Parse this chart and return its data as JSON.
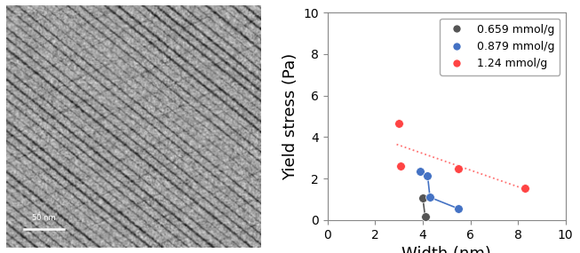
{
  "title": "",
  "xlabel": "Width (nm)",
  "ylabel": "Yield stress (Pa)",
  "xlim": [
    0,
    10
  ],
  "ylim": [
    0,
    10
  ],
  "xticks": [
    0,
    2,
    4,
    6,
    8,
    10
  ],
  "yticks": [
    0,
    2,
    4,
    6,
    8,
    10
  ],
  "series": [
    {
      "label": "0.659 mmol/g",
      "color": "#555555",
      "marker": "o",
      "markersize": 7,
      "x": [
        4.0,
        4.1
      ],
      "y": [
        1.05,
        0.15
      ],
      "connect": true,
      "linestyle": "-",
      "trend": false
    },
    {
      "label": "0.879 mmol/g",
      "color": "#4472C4",
      "marker": "o",
      "markersize": 7,
      "x": [
        3.9,
        4.2,
        4.3,
        5.5
      ],
      "y": [
        2.35,
        2.15,
        1.1,
        0.55
      ],
      "connect": true,
      "linestyle": "-",
      "trend": false
    },
    {
      "label": "1.24 mmol/g",
      "color": "#FF4444",
      "marker": "o",
      "markersize": 7,
      "x": [
        3.0,
        3.05,
        5.5,
        8.3
      ],
      "y": [
        4.65,
        2.6,
        2.5,
        1.55
      ],
      "connect": false,
      "linestyle": ":",
      "trend": true
    }
  ],
  "legend_fontsize": 9,
  "axis_fontsize": 13,
  "tick_fontsize": 10,
  "scalebar_text": "50 nm",
  "background_color": "#ffffff"
}
